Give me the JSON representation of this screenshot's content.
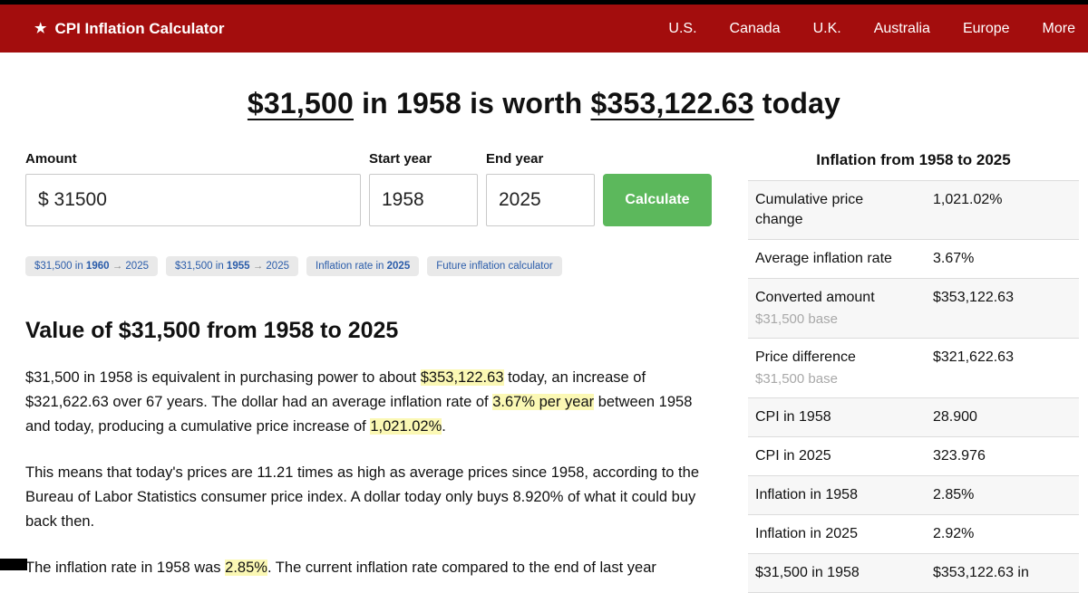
{
  "header": {
    "star": "★",
    "brand": "CPI Inflation Calculator",
    "nav": [
      "U.S.",
      "Canada",
      "U.K.",
      "Australia",
      "Europe",
      "More"
    ]
  },
  "title_segments": [
    {
      "text": "$31,500",
      "underline": true
    },
    {
      "text": " in 1958 is worth ",
      "underline": false
    },
    {
      "text": "$353,122.63",
      "underline": true
    },
    {
      "text": " today",
      "underline": false
    }
  ],
  "form": {
    "amount_label": "Amount",
    "amount_value": "$ 31500",
    "start_year_label": "Start year",
    "start_year_value": "1958",
    "end_year_label": "End year",
    "end_year_value": "2025",
    "calculate_label": "Calculate"
  },
  "chips": [
    {
      "segments": [
        {
          "text": "$31,500 in "
        },
        {
          "text": "1960",
          "bold": true
        },
        {
          "text": " → ",
          "muted": true
        },
        {
          "text": "2025"
        }
      ]
    },
    {
      "segments": [
        {
          "text": "$31,500 in "
        },
        {
          "text": "1955",
          "bold": true
        },
        {
          "text": " → ",
          "muted": true
        },
        {
          "text": "2025"
        }
      ]
    },
    {
      "segments": [
        {
          "text": "Inflation rate in "
        },
        {
          "text": "2025",
          "bold": true
        }
      ]
    },
    {
      "segments": [
        {
          "text": "Future inflation calculator"
        }
      ]
    }
  ],
  "section": {
    "heading": "Value of $31,500 from 1958 to 2025",
    "paragraphs": [
      {
        "segments": [
          {
            "text": "$31,500 in 1958 is equivalent in purchasing power to about "
          },
          {
            "text": "$353,122.63",
            "highlight": true
          },
          {
            "text": " today, an increase of $321,622.63 over 67 years. The dollar had an average inflation rate of "
          },
          {
            "text": "3.67% per year",
            "highlight": true
          },
          {
            "text": " between 1958 and today, producing a cumulative price increase of "
          },
          {
            "text": "1,021.02%",
            "highlight": true
          },
          {
            "text": "."
          }
        ]
      },
      {
        "segments": [
          {
            "text": "This means that today's prices are 11.21 times as high as average prices since 1958, according to the Bureau of Labor Statistics consumer price index. A dollar today only buys 8.920% of what it could buy back then."
          }
        ]
      },
      {
        "segments": [
          {
            "text": "The inflation rate in 1958 was "
          },
          {
            "text": "2.85%",
            "highlight": true
          },
          {
            "text": ". The current inflation rate compared to the end of last year"
          }
        ]
      }
    ]
  },
  "sidebar": {
    "title": "Inflation from 1958 to 2025",
    "rows": [
      {
        "label": "Cumulative price change",
        "value": "1,021.02%"
      },
      {
        "label": "Average inflation rate",
        "value": "3.67%"
      },
      {
        "label": "Converted amount",
        "sublabel": "$31,500 base",
        "value": "$353,122.63"
      },
      {
        "label": "Price difference",
        "sublabel": "$31,500 base",
        "value": "$321,622.63"
      },
      {
        "label": "CPI in 1958",
        "value": "28.900"
      },
      {
        "label": "CPI in 2025",
        "value": "323.976"
      },
      {
        "label": "Inflation in 1958",
        "value": "2.85%"
      },
      {
        "label": "Inflation in 2025",
        "value": "2.92%"
      },
      {
        "label": "$31,500 in 1958",
        "value": "$353,122.63 in"
      }
    ]
  },
  "colors": {
    "header_bg": "#a30d0d",
    "accent_green": "#5cb85c",
    "highlight_yellow": "#fbf8b4",
    "link_blue": "#2a5caa"
  }
}
